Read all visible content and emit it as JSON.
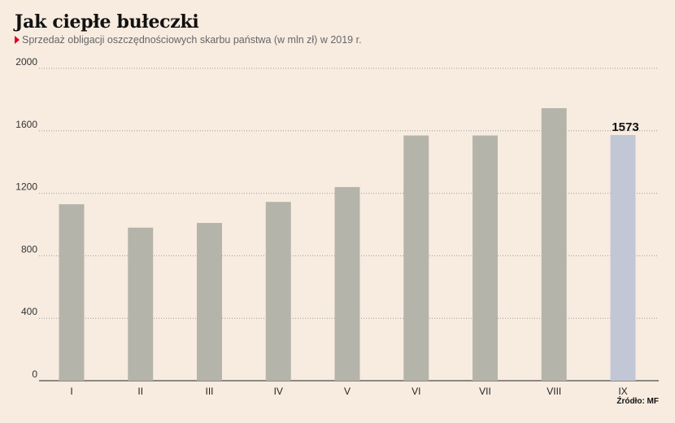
{
  "header": {
    "title": "Jak ciepłe bułeczki",
    "subtitle": "Sprzedaż obligacji oszczędnościowych skarbu państwa (w mln zł) w 2019 r."
  },
  "source": "Źródło: MF",
  "colors": {
    "background": "#f8ece0",
    "bar": "#b5b4aa",
    "highlight_bar": "#c2c7d6",
    "accent": "#e2001a",
    "grid": "#9a9a9a"
  },
  "chart_data": {
    "type": "bar",
    "title": "Jak ciepłe bułeczki",
    "subtitle": "Sprzedaż obligacji oszczędnościowych skarbu państwa (w mln zł) w 2019 r.",
    "categories": [
      "I",
      "II",
      "III",
      "IV",
      "V",
      "VI",
      "VII",
      "VIII",
      "IX"
    ],
    "values": [
      1130,
      980,
      1010,
      1145,
      1240,
      1570,
      1570,
      1745,
      1573
    ],
    "highlight_index": 8,
    "highlight_label": "1573",
    "ylim": [
      0,
      2000
    ],
    "yticks": [
      0,
      400,
      800,
      1200,
      1600,
      2000
    ],
    "grid": true,
    "legend": "none"
  }
}
